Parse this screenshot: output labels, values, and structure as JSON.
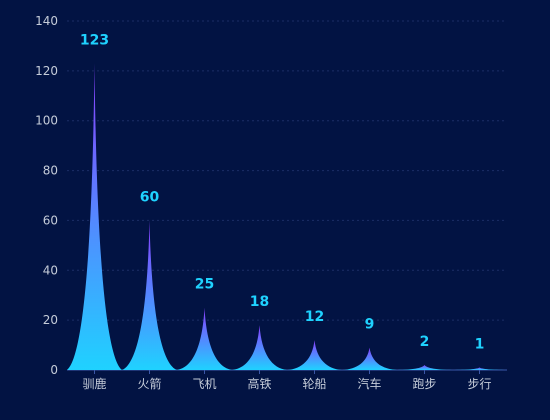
{
  "chart_data": {
    "type": "bar",
    "categories": [
      "驯鹿",
      "火箭",
      "飞机",
      "高铁",
      "轮船",
      "汽车",
      "跑步",
      "步行"
    ],
    "values": [
      123,
      60,
      25,
      18,
      12,
      9,
      2,
      1
    ],
    "value_labels": [
      "123",
      "60",
      "25",
      "18",
      "12",
      "9",
      "2",
      "1"
    ],
    "ylim": [
      0,
      140
    ],
    "yticks": [
      0,
      20,
      40,
      60,
      80,
      100,
      120,
      140
    ],
    "ytick_labels": [
      "0",
      "20",
      "40",
      "60",
      "80",
      "100",
      "120",
      "140"
    ],
    "grid": true,
    "bar_style": "spike",
    "colors": {
      "background": "#021343",
      "bar_top": "#8a3cff",
      "bar_bottom": "#1fd2ff",
      "value_label": "#1fd2ff",
      "tick_label": "#c5ccd9",
      "grid": "#1c2e66",
      "axis": "#3b57a8"
    }
  }
}
